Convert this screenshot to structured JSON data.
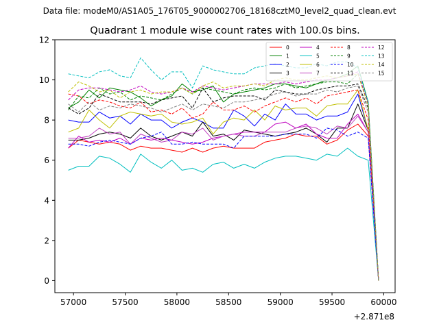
{
  "header": {
    "data_file": "Data file: modeM0/AS1A05_176T05_9000002706_18168cztM0_level2_quad_clean.evt"
  },
  "chart_data": {
    "type": "line",
    "title": "Quadrant 1 module wise count rates with 100.0s bins.",
    "xlabel": "",
    "ylabel": "",
    "offset_text": "+2.871e8",
    "xlim": [
      56820,
      60110
    ],
    "ylim": [
      -0.6,
      12
    ],
    "x_ticks": [
      57000,
      57500,
      58000,
      58500,
      59000,
      59500,
      60000
    ],
    "y_ticks": [
      0,
      2,
      4,
      6,
      8,
      10,
      12
    ],
    "x_tick_labels": [
      "57000",
      "57500",
      "58000",
      "58500",
      "59000",
      "59500",
      "60000"
    ],
    "y_tick_labels": [
      "0",
      "2",
      "4",
      "6",
      "8",
      "10",
      "12"
    ],
    "x": [
      56950,
      57050,
      57150,
      57250,
      57350,
      57450,
      57550,
      57650,
      57750,
      57850,
      57950,
      58050,
      58150,
      58250,
      58350,
      58450,
      58550,
      58650,
      58750,
      58850,
      58950,
      59050,
      59150,
      59250,
      59350,
      59450,
      59550,
      59650,
      59750,
      59850,
      59950
    ],
    "legend": {
      "placement": "top-right",
      "columns": 4
    },
    "series": [
      {
        "name": "0",
        "color": "#ff0000",
        "dash": false,
        "values": [
          6.6,
          7.0,
          6.9,
          6.8,
          6.9,
          6.8,
          6.5,
          6.7,
          6.6,
          6.6,
          6.5,
          6.4,
          6.6,
          6.4,
          6.6,
          6.7,
          6.6,
          6.6,
          6.6,
          6.9,
          7.0,
          7.1,
          7.3,
          7.2,
          7.2,
          6.8,
          7.0,
          7.5,
          7.8,
          7.2,
          0.0
        ]
      },
      {
        "name": "1",
        "color": "#008000",
        "dash": false,
        "values": [
          8.6,
          8.9,
          9.5,
          9.1,
          9.6,
          9.5,
          9.4,
          9.1,
          8.7,
          9.0,
          9.2,
          9.8,
          9.4,
          9.5,
          9.7,
          8.9,
          9.3,
          9.4,
          9.5,
          9.6,
          9.8,
          9.8,
          9.7,
          9.6,
          9.8,
          10.0,
          10.1,
          10.3,
          10.7,
          8.9,
          0.0
        ]
      },
      {
        "name": "2",
        "color": "#0000ff",
        "dash": false,
        "values": [
          8.0,
          7.9,
          7.9,
          8.4,
          8.1,
          8.2,
          7.8,
          8.3,
          8.0,
          8.0,
          7.6,
          7.9,
          8.1,
          7.9,
          7.6,
          7.6,
          8.5,
          8.2,
          7.7,
          8.3,
          8.0,
          8.8,
          8.3,
          8.3,
          8.0,
          8.2,
          8.2,
          8.4,
          9.3,
          7.5,
          0.0
        ]
      },
      {
        "name": "3",
        "color": "#000000",
        "dash": false,
        "values": [
          7.0,
          7.0,
          7.1,
          7.3,
          7.4,
          7.3,
          7.1,
          7.6,
          7.2,
          7.0,
          7.2,
          7.4,
          7.2,
          7.9,
          7.2,
          7.3,
          7.0,
          7.5,
          7.4,
          7.3,
          7.2,
          7.3,
          7.4,
          7.6,
          7.3,
          6.9,
          7.6,
          7.6,
          8.8,
          7.5,
          0.0
        ]
      },
      {
        "name": "4",
        "color": "#bf00bf",
        "dash": false,
        "values": [
          6.6,
          7.2,
          6.9,
          7.0,
          6.9,
          7.1,
          6.8,
          7.1,
          7.0,
          7.1,
          7.0,
          6.9,
          6.8,
          6.9,
          7.1,
          7.2,
          7.3,
          7.4,
          7.4,
          7.4,
          7.8,
          7.9,
          7.6,
          7.8,
          7.3,
          7.1,
          7.1,
          7.8,
          8.3,
          7.4,
          0.0
        ]
      },
      {
        "name": "5",
        "color": "#00bfbf",
        "dash": false,
        "values": [
          5.5,
          5.7,
          5.7,
          6.2,
          6.1,
          5.8,
          5.4,
          6.3,
          5.9,
          5.6,
          6.0,
          5.5,
          5.6,
          5.4,
          5.8,
          5.9,
          5.6,
          5.8,
          5.6,
          5.9,
          6.1,
          6.2,
          6.2,
          6.1,
          6.0,
          6.3,
          6.2,
          6.6,
          6.2,
          6.0,
          0.0
        ]
      },
      {
        "name": "6",
        "color": "#bfbf00",
        "dash": false,
        "values": [
          7.4,
          7.6,
          8.5,
          8.0,
          7.6,
          8.2,
          8.4,
          8.3,
          8.2,
          8.3,
          7.9,
          7.8,
          7.9,
          8.1,
          7.3,
          7.9,
          8.1,
          8.0,
          8.5,
          8.0,
          8.7,
          8.5,
          8.6,
          8.6,
          8.2,
          8.7,
          8.8,
          8.8,
          9.5,
          7.5,
          0.0
        ]
      },
      {
        "name": "7",
        "color": "#bf40bf",
        "dash": false,
        "values": [
          7.1,
          7.1,
          7.2,
          7.6,
          7.3,
          7.4,
          6.8,
          7.3,
          7.1,
          6.9,
          7.0,
          7.4,
          7.3,
          7.6,
          7.0,
          7.2,
          7.3,
          7.2,
          7.2,
          7.4,
          7.4,
          7.4,
          7.6,
          7.7,
          7.6,
          7.3,
          7.7,
          7.6,
          8.2,
          7.4,
          0.0
        ]
      },
      {
        "name": "8",
        "color": "#ff0000",
        "dash": true,
        "values": [
          9.3,
          9.2,
          8.8,
          9.0,
          8.9,
          8.7,
          8.6,
          8.9,
          8.4,
          8.5,
          8.3,
          8.6,
          8.1,
          8.3,
          8.9,
          8.5,
          8.5,
          8.7,
          8.4,
          8.7,
          8.9,
          9.1,
          8.9,
          9.1,
          8.8,
          9.2,
          9.3,
          9.4,
          9.5,
          8.0,
          0.0
        ]
      },
      {
        "name": "9",
        "color": "#008000",
        "dash": true,
        "values": [
          8.5,
          9.2,
          9.1,
          9.6,
          9.3,
          9.4,
          9.0,
          9.2,
          9.1,
          9.0,
          9.3,
          9.6,
          9.3,
          9.6,
          9.5,
          9.4,
          9.3,
          9.5,
          9.6,
          9.5,
          9.6,
          9.8,
          9.6,
          9.7,
          9.8,
          9.9,
          9.9,
          9.8,
          10.3,
          8.8,
          0.0
        ]
      },
      {
        "name": "10",
        "color": "#0000ff",
        "dash": true,
        "values": [
          6.8,
          6.8,
          6.7,
          6.9,
          7.0,
          6.9,
          6.8,
          7.1,
          7.2,
          7.4,
          6.8,
          6.8,
          6.9,
          6.8,
          6.8,
          6.8,
          6.6,
          7.2,
          7.2,
          7.2,
          7.2,
          7.3,
          7.3,
          7.3,
          7.1,
          7.6,
          7.5,
          7.2,
          7.4,
          7.1,
          0.0
        ]
      },
      {
        "name": "11",
        "color": "#000000",
        "dash": true,
        "values": [
          8.6,
          8.3,
          8.6,
          9.3,
          9.1,
          8.9,
          8.9,
          8.9,
          8.8,
          9.0,
          9.1,
          9.2,
          8.6,
          9.6,
          8.9,
          9.1,
          9.2,
          9.2,
          9.2,
          9.0,
          9.5,
          9.4,
          9.3,
          9.3,
          9.5,
          9.6,
          9.7,
          9.7,
          9.8,
          8.6,
          0.0
        ]
      },
      {
        "name": "12",
        "color": "#bf00bf",
        "dash": true,
        "values": [
          9.0,
          9.5,
          9.6,
          9.6,
          9.5,
          9.4,
          9.5,
          9.7,
          9.4,
          9.3,
          9.4,
          9.6,
          9.4,
          9.7,
          9.6,
          9.5,
          9.6,
          9.7,
          9.8,
          9.8,
          9.8,
          9.9,
          9.8,
          9.9,
          10.0,
          10.0,
          10.1,
          10.2,
          10.4,
          8.8,
          0.0
        ]
      },
      {
        "name": "13",
        "color": "#00bfbf",
        "dash": true,
        "values": [
          10.3,
          10.2,
          10.1,
          10.4,
          10.5,
          10.2,
          10.1,
          11.1,
          10.5,
          10.0,
          10.4,
          10.4,
          9.6,
          10.7,
          10.5,
          10.4,
          10.3,
          10.3,
          10.6,
          10.7,
          10.8,
          10.7,
          10.6,
          10.6,
          10.8,
          10.7,
          10.9,
          10.9,
          10.6,
          8.9,
          0.0
        ]
      },
      {
        "name": "14",
        "color": "#bfbf00",
        "dash": true,
        "values": [
          9.4,
          9.9,
          9.7,
          9.4,
          9.5,
          9.1,
          9.4,
          9.5,
          9.3,
          9.4,
          9.4,
          9.6,
          9.3,
          9.7,
          9.9,
          9.6,
          9.7,
          9.7,
          9.8,
          9.7,
          10.0,
          10.1,
          10.0,
          10.0,
          10.1,
          10.2,
          10.1,
          10.2,
          10.3,
          8.7,
          0.0
        ]
      },
      {
        "name": "15",
        "color": "#808080",
        "dash": true,
        "values": [
          8.8,
          8.4,
          8.9,
          8.5,
          8.7,
          8.6,
          8.8,
          8.7,
          8.6,
          8.4,
          8.6,
          8.8,
          8.5,
          8.8,
          8.7,
          8.6,
          8.9,
          8.9,
          9.0,
          9.1,
          9.3,
          9.4,
          9.2,
          9.3,
          9.3,
          9.5,
          9.4,
          9.6,
          9.7,
          8.4,
          0.0
        ]
      }
    ]
  }
}
